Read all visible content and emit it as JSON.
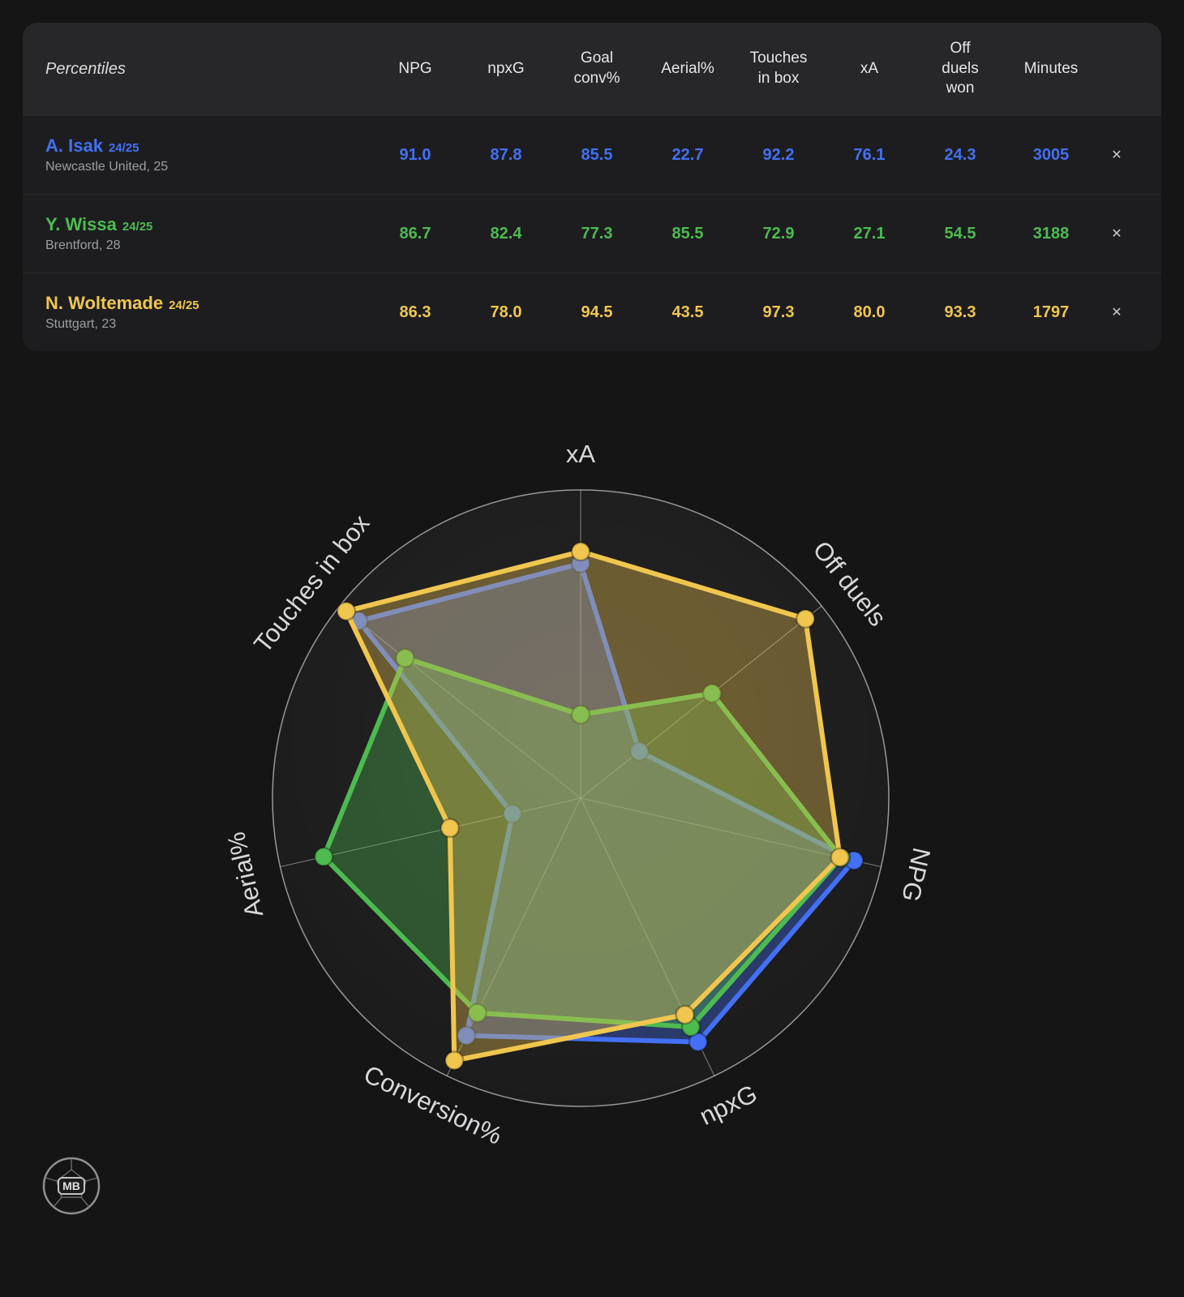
{
  "table": {
    "corner_label": "Percentiles",
    "columns": [
      "NPG",
      "npxG",
      "Goal conv%",
      "Aerial%",
      "Touches in box",
      "xA",
      "Off duels won",
      "Minutes"
    ],
    "remove_label": "✕",
    "players": [
      {
        "name": "A. Isak",
        "season": "24/25",
        "subtitle": "Newcastle United, 25",
        "color": "#4370f4",
        "values": [
          "91.0",
          "87.8",
          "85.5",
          "22.7",
          "92.2",
          "76.1",
          "24.3",
          "3005"
        ]
      },
      {
        "name": "Y. Wissa",
        "season": "24/25",
        "subtitle": "Brentford, 28",
        "color": "#4dbb50",
        "values": [
          "86.7",
          "82.4",
          "77.3",
          "85.5",
          "72.9",
          "27.1",
          "54.5",
          "3188"
        ]
      },
      {
        "name": "N. Woltemade",
        "season": "24/25",
        "subtitle": "Stuttgart, 23",
        "color": "#f0c64f",
        "values": [
          "86.3",
          "78.0",
          "94.5",
          "43.5",
          "97.3",
          "80.0",
          "93.3",
          "1797"
        ]
      }
    ]
  },
  "chart_data": {
    "type": "radar",
    "axes": [
      "xA",
      "Off duels",
      "NPG",
      "npxG",
      "Conversion%",
      "Aerial%",
      "Touches in box"
    ],
    "range": [
      0,
      100
    ],
    "grid": "outer-circle-and-spokes",
    "series": [
      {
        "name": "A. Isak 24/25",
        "color": "#4370f4",
        "values": [
          76.1,
          24.3,
          91.0,
          87.8,
          85.5,
          22.7,
          92.2
        ]
      },
      {
        "name": "Y. Wissa 24/25",
        "color": "#4dbb50",
        "values": [
          27.1,
          54.5,
          86.7,
          82.4,
          77.3,
          85.5,
          72.9
        ]
      },
      {
        "name": "N. Woltemade 24/25",
        "color": "#f0c64f",
        "values": [
          80.0,
          93.3,
          86.3,
          78.0,
          94.5,
          43.5,
          97.3
        ]
      }
    ]
  },
  "logo": {
    "text": "MB"
  }
}
